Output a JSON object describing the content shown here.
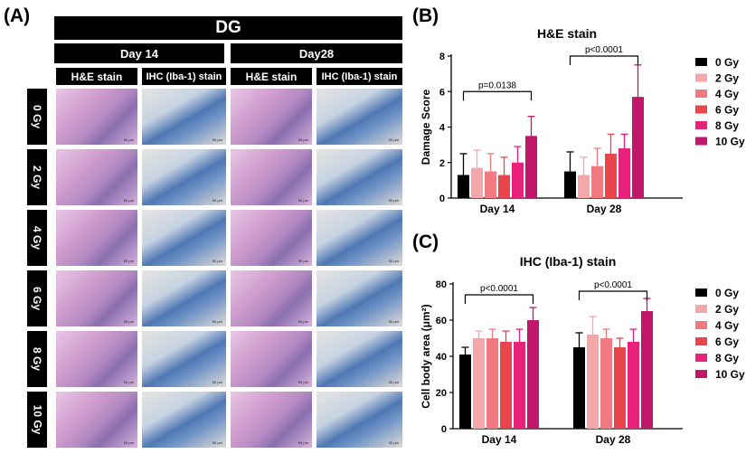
{
  "panel_a": {
    "letter": "(A)",
    "region": "DG",
    "days": [
      "Day 14",
      "Day28"
    ],
    "stains": [
      "H&E stain",
      "IHC (Iba-1) stain",
      "H&E stain",
      "IHC (Iba-1) stain"
    ],
    "rows": [
      "0 Gy",
      "2 Gy",
      "4 Gy",
      "6 Gy",
      "8 Gy",
      "10 Gy"
    ],
    "scale_bar": "50 μm"
  },
  "panel_b_letter": "(B)",
  "panel_c_letter": "(C)",
  "chart_data": [
    {
      "type": "bar",
      "title": "H&E stain",
      "ylabel": "Damage Score",
      "ylim": [
        0,
        8
      ],
      "yticks": [
        0,
        2,
        4,
        6,
        8
      ],
      "categories": [
        "Day 14",
        "Day 28"
      ],
      "legend_position": "right",
      "series": [
        {
          "name": "0 Gy",
          "color": "#000000",
          "values": [
            1.3,
            1.5
          ],
          "errors": [
            1.2,
            1.1
          ]
        },
        {
          "name": "2 Gy",
          "color": "#f4a7a9",
          "values": [
            1.7,
            1.3
          ],
          "errors": [
            1.0,
            1.0
          ]
        },
        {
          "name": "4 Gy",
          "color": "#f17a80",
          "values": [
            1.5,
            1.8
          ],
          "errors": [
            1.0,
            1.0
          ]
        },
        {
          "name": "6 Gy",
          "color": "#e8454d",
          "values": [
            1.3,
            2.5
          ],
          "errors": [
            1.0,
            1.1
          ]
        },
        {
          "name": "8 Gy",
          "color": "#e8217a",
          "values": [
            2.0,
            2.8
          ],
          "errors": [
            0.9,
            0.8
          ]
        },
        {
          "name": "10 Gy",
          "color": "#c0176a",
          "values": [
            3.5,
            5.7
          ],
          "errors": [
            1.1,
            1.8
          ]
        }
      ],
      "annotations": [
        {
          "text": "p=0.0138",
          "category": 0,
          "y": 6.0
        },
        {
          "text": "p<0.0001",
          "category": 1,
          "y": 8.0
        }
      ]
    },
    {
      "type": "bar",
      "title": "IHC (Iba-1) stain",
      "ylabel": "Cell body area (μm²)",
      "ylim": [
        0,
        80
      ],
      "yticks": [
        0,
        20,
        40,
        60,
        80
      ],
      "categories": [
        "Day 14",
        "Day 28"
      ],
      "legend_position": "right",
      "series": [
        {
          "name": "0 Gy",
          "color": "#000000",
          "values": [
            41,
            45
          ],
          "errors": [
            4,
            8
          ]
        },
        {
          "name": "2 Gy",
          "color": "#f4a7a9",
          "values": [
            50,
            52
          ],
          "errors": [
            4,
            10
          ]
        },
        {
          "name": "4 Gy",
          "color": "#f17a80",
          "values": [
            50,
            50
          ],
          "errors": [
            5,
            5
          ]
        },
        {
          "name": "6 Gy",
          "color": "#e8454d",
          "values": [
            48,
            45
          ],
          "errors": [
            6,
            5
          ]
        },
        {
          "name": "8 Gy",
          "color": "#e8217a",
          "values": [
            48,
            48
          ],
          "errors": [
            7,
            7
          ]
        },
        {
          "name": "10 Gy",
          "color": "#c0176a",
          "values": [
            60,
            65
          ],
          "errors": [
            7,
            7
          ]
        }
      ],
      "annotations": [
        {
          "text": "p<0.0001",
          "category": 0,
          "y": 74
        },
        {
          "text": "p<0.0001",
          "category": 1,
          "y": 76
        }
      ]
    }
  ]
}
